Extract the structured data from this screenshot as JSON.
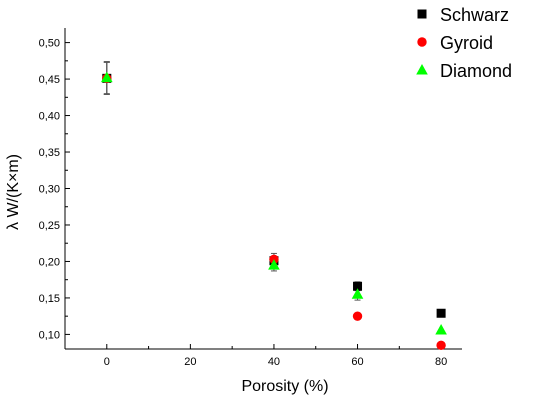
{
  "chart_data": {
    "type": "scatter",
    "title": "",
    "xlabel": "Porosity (%)",
    "ylabel": "λ W/(K×m)",
    "xlim": [
      -10,
      85
    ],
    "ylim": [
      0.08,
      0.52
    ],
    "x_ticks": [
      0,
      20,
      40,
      60,
      80
    ],
    "y_ticks": [
      0.1,
      0.15,
      0.2,
      0.25,
      0.3,
      0.35,
      0.4,
      0.45,
      0.5
    ],
    "x_tick_labels": [
      "0",
      "20",
      "40",
      "60",
      "80"
    ],
    "y_tick_labels": [
      "0,10",
      "0,15",
      "0,20",
      "0,25",
      "0,30",
      "0,35",
      "0,40",
      "0,45",
      "0,50"
    ],
    "grid": false,
    "legend_position": "top-right",
    "series": [
      {
        "name": "Schwarz",
        "marker": "square",
        "color": "#000000",
        "x": [
          0,
          40,
          60,
          80
        ],
        "y": [
          0.451,
          0.201,
          0.166,
          0.129
        ],
        "error": [
          0.022,
          0.006,
          0.006,
          0.0
        ]
      },
      {
        "name": "Gyroid",
        "marker": "circle",
        "color": "#ff0000",
        "x": [
          0,
          40,
          60,
          80
        ],
        "y": [
          0.451,
          0.203,
          0.125,
          0.085
        ],
        "error": [
          0.022,
          0.008,
          0.0,
          0.0
        ]
      },
      {
        "name": "Diamond",
        "marker": "triangle",
        "color": "#00ff00",
        "x": [
          0,
          40,
          60,
          80
        ],
        "y": [
          0.452,
          0.195,
          0.155,
          0.106
        ],
        "error": [
          0.022,
          0.008,
          0.008,
          0.0
        ]
      }
    ]
  }
}
